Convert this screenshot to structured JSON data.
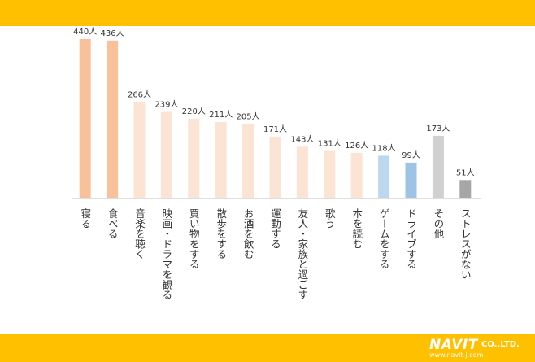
{
  "colors": {
    "band": "#ffc000",
    "axis": "#bfbfbf",
    "label": "#333333"
  },
  "logo": {
    "brand": "NAVIT",
    "company": "CO.,LTD.",
    "url": "www.navit-j.com"
  },
  "chart_data": {
    "type": "bar",
    "categories": [
      "寝る",
      "食べる",
      "音楽を聴く",
      "映画・ドラマを観る",
      "買い物をする",
      "散歩をする",
      "お酒を飲む",
      "運動する",
      "友人・家族と過ごす",
      "歌う",
      "本を読む",
      "ゲームをする",
      "ドライブする",
      "その他",
      "ストレスがない"
    ],
    "values": [
      440,
      436,
      266,
      239,
      220,
      211,
      205,
      171,
      143,
      131,
      126,
      118,
      99,
      173,
      51
    ],
    "data_labels": [
      "440人",
      "436人",
      "266人",
      "239人",
      "220人",
      "211人",
      "205人",
      "171人",
      "143人",
      "131人",
      "126人",
      "118人",
      "99人",
      "173人",
      "51人"
    ],
    "bar_colors": [
      "#f9c199",
      "#f9c199",
      "#fce4d4",
      "#fce4d4",
      "#fce4d4",
      "#fce4d4",
      "#fce4d4",
      "#fce4d4",
      "#fce4d4",
      "#fce4d4",
      "#fce4d4",
      "#bdd7ee",
      "#9dc3e6",
      "#d0d0d0",
      "#a6a6a6"
    ],
    "ylim": [
      0,
      440
    ],
    "grid": false,
    "legend": "none"
  }
}
